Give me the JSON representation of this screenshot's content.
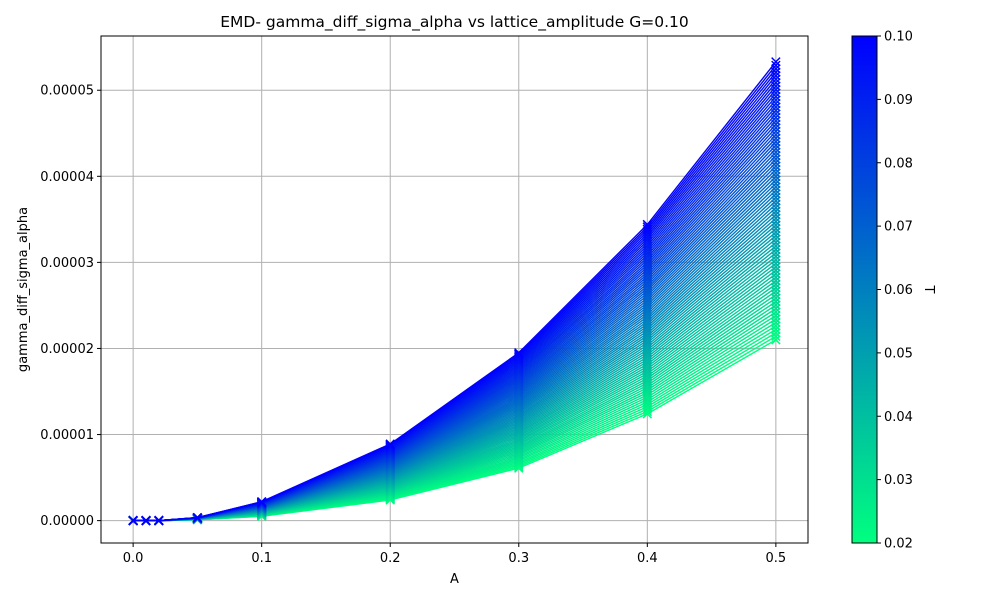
{
  "chart_data": {
    "type": "line",
    "title": "EMD- gamma_diff_sigma_alpha vs lattice_amplitude G=0.10",
    "xlabel": "A",
    "ylabel": "gamma_diff_sigma_alpha",
    "x": [
      0.0,
      0.01,
      0.02,
      0.05,
      0.1,
      0.2,
      0.3,
      0.4,
      0.5
    ],
    "xlim": [
      -0.025,
      0.525
    ],
    "ylim": [
      -2.6e-06,
      5.63e-05
    ],
    "x_ticks": [
      {
        "value": 0.0,
        "label": "0.0"
      },
      {
        "value": 0.1,
        "label": "0.1"
      },
      {
        "value": 0.2,
        "label": "0.2"
      },
      {
        "value": 0.3,
        "label": "0.3"
      },
      {
        "value": 0.4,
        "label": "0.4"
      },
      {
        "value": 0.5,
        "label": "0.5"
      }
    ],
    "y_ticks": [
      {
        "value": 0.0,
        "label": "0.00000"
      },
      {
        "value": 1e-05,
        "label": "0.00001"
      },
      {
        "value": 2e-05,
        "label": "0.00002"
      },
      {
        "value": 3e-05,
        "label": "0.00003"
      },
      {
        "value": 4e-05,
        "label": "0.00004"
      },
      {
        "value": 5e-05,
        "label": "0.00005"
      }
    ],
    "grid": true,
    "marker": "x",
    "series_param": "T",
    "series_param_range": [
      0.02,
      0.1
    ],
    "series_count": 81,
    "envelope": {
      "T_max_values": [
        0.0,
        0.0,
        0.0,
        3.5e-07,
        2.2e-06,
        8.9e-06,
        1.95e-05,
        3.44e-05,
        5.33e-05
      ],
      "T_min_values": [
        0.0,
        0.0,
        0.0,
        1e-07,
        5e-07,
        2.4e-06,
        6.1e-06,
        1.24e-05,
        2.1e-05
      ],
      "shape_exponent": 1.0
    },
    "colorbar": {
      "label": "T",
      "min": 0.02,
      "max": 0.1,
      "colormap": "winter_r",
      "color_low": "#00ff80",
      "color_high": "#0000ff",
      "ticks": [
        {
          "value": 0.02,
          "label": "0.02"
        },
        {
          "value": 0.03,
          "label": "0.03"
        },
        {
          "value": 0.04,
          "label": "0.04"
        },
        {
          "value": 0.05,
          "label": "0.05"
        },
        {
          "value": 0.06,
          "label": "0.06"
        },
        {
          "value": 0.07,
          "label": "0.07"
        },
        {
          "value": 0.08,
          "label": "0.08"
        },
        {
          "value": 0.09,
          "label": "0.09"
        },
        {
          "value": 0.1,
          "label": "0.10"
        }
      ]
    },
    "grid_color": "#b0b0b0",
    "axis_color": "#000000"
  }
}
